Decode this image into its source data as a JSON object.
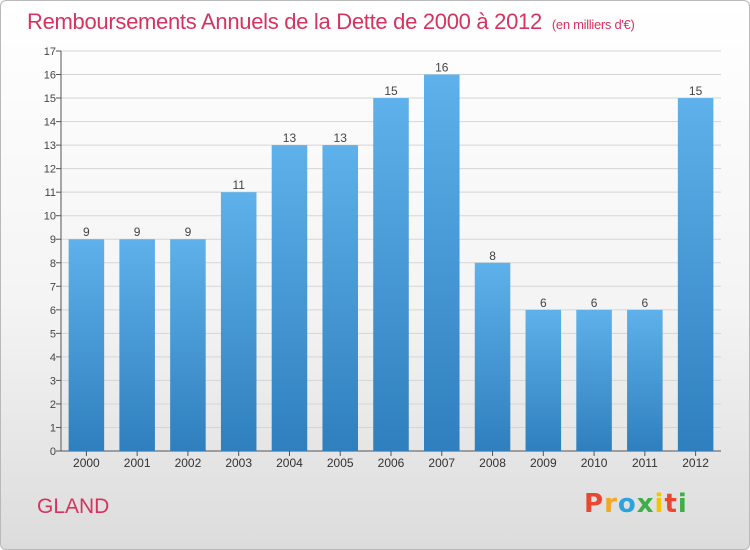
{
  "title": "Remboursements Annuels de la Dette de 2000 à 2012",
  "unit": "(en milliers d'€)",
  "commune": "GLAND",
  "logo": {
    "letters": [
      "P",
      "r",
      "o",
      "x",
      "i",
      "t",
      "i"
    ],
    "colors": [
      "#e8482f",
      "#f5a623",
      "#2aa3df",
      "#3fae49",
      "#f5c400",
      "#e8482f",
      "#3fae49"
    ]
  },
  "chart_data": {
    "type": "bar",
    "title": "Remboursements Annuels de la Dette de 2000 à 2012",
    "categories": [
      "2000",
      "2001",
      "2002",
      "2003",
      "2004",
      "2005",
      "2006",
      "2007",
      "2008",
      "2009",
      "2010",
      "2011",
      "2012"
    ],
    "values": [
      9,
      9,
      9,
      11,
      13,
      13,
      15,
      16,
      8,
      6,
      6,
      6,
      15
    ],
    "data_labels": [
      "9",
      "9",
      "9",
      "11",
      "13",
      "13",
      "15",
      "16",
      "8",
      "6",
      "6",
      "6",
      "15"
    ],
    "y_ticks": [
      "0",
      "1",
      "2",
      "3",
      "4",
      "5",
      "6",
      "7",
      "8",
      "9",
      "10",
      "11",
      "12",
      "13",
      "14",
      "15",
      "16",
      "17"
    ],
    "ylim": [
      0,
      17
    ],
    "grid": true,
    "bar_color_top": "#5eb1ea",
    "bar_color_bottom": "#2f7fbe",
    "grid_color": "#d5d5d5"
  }
}
